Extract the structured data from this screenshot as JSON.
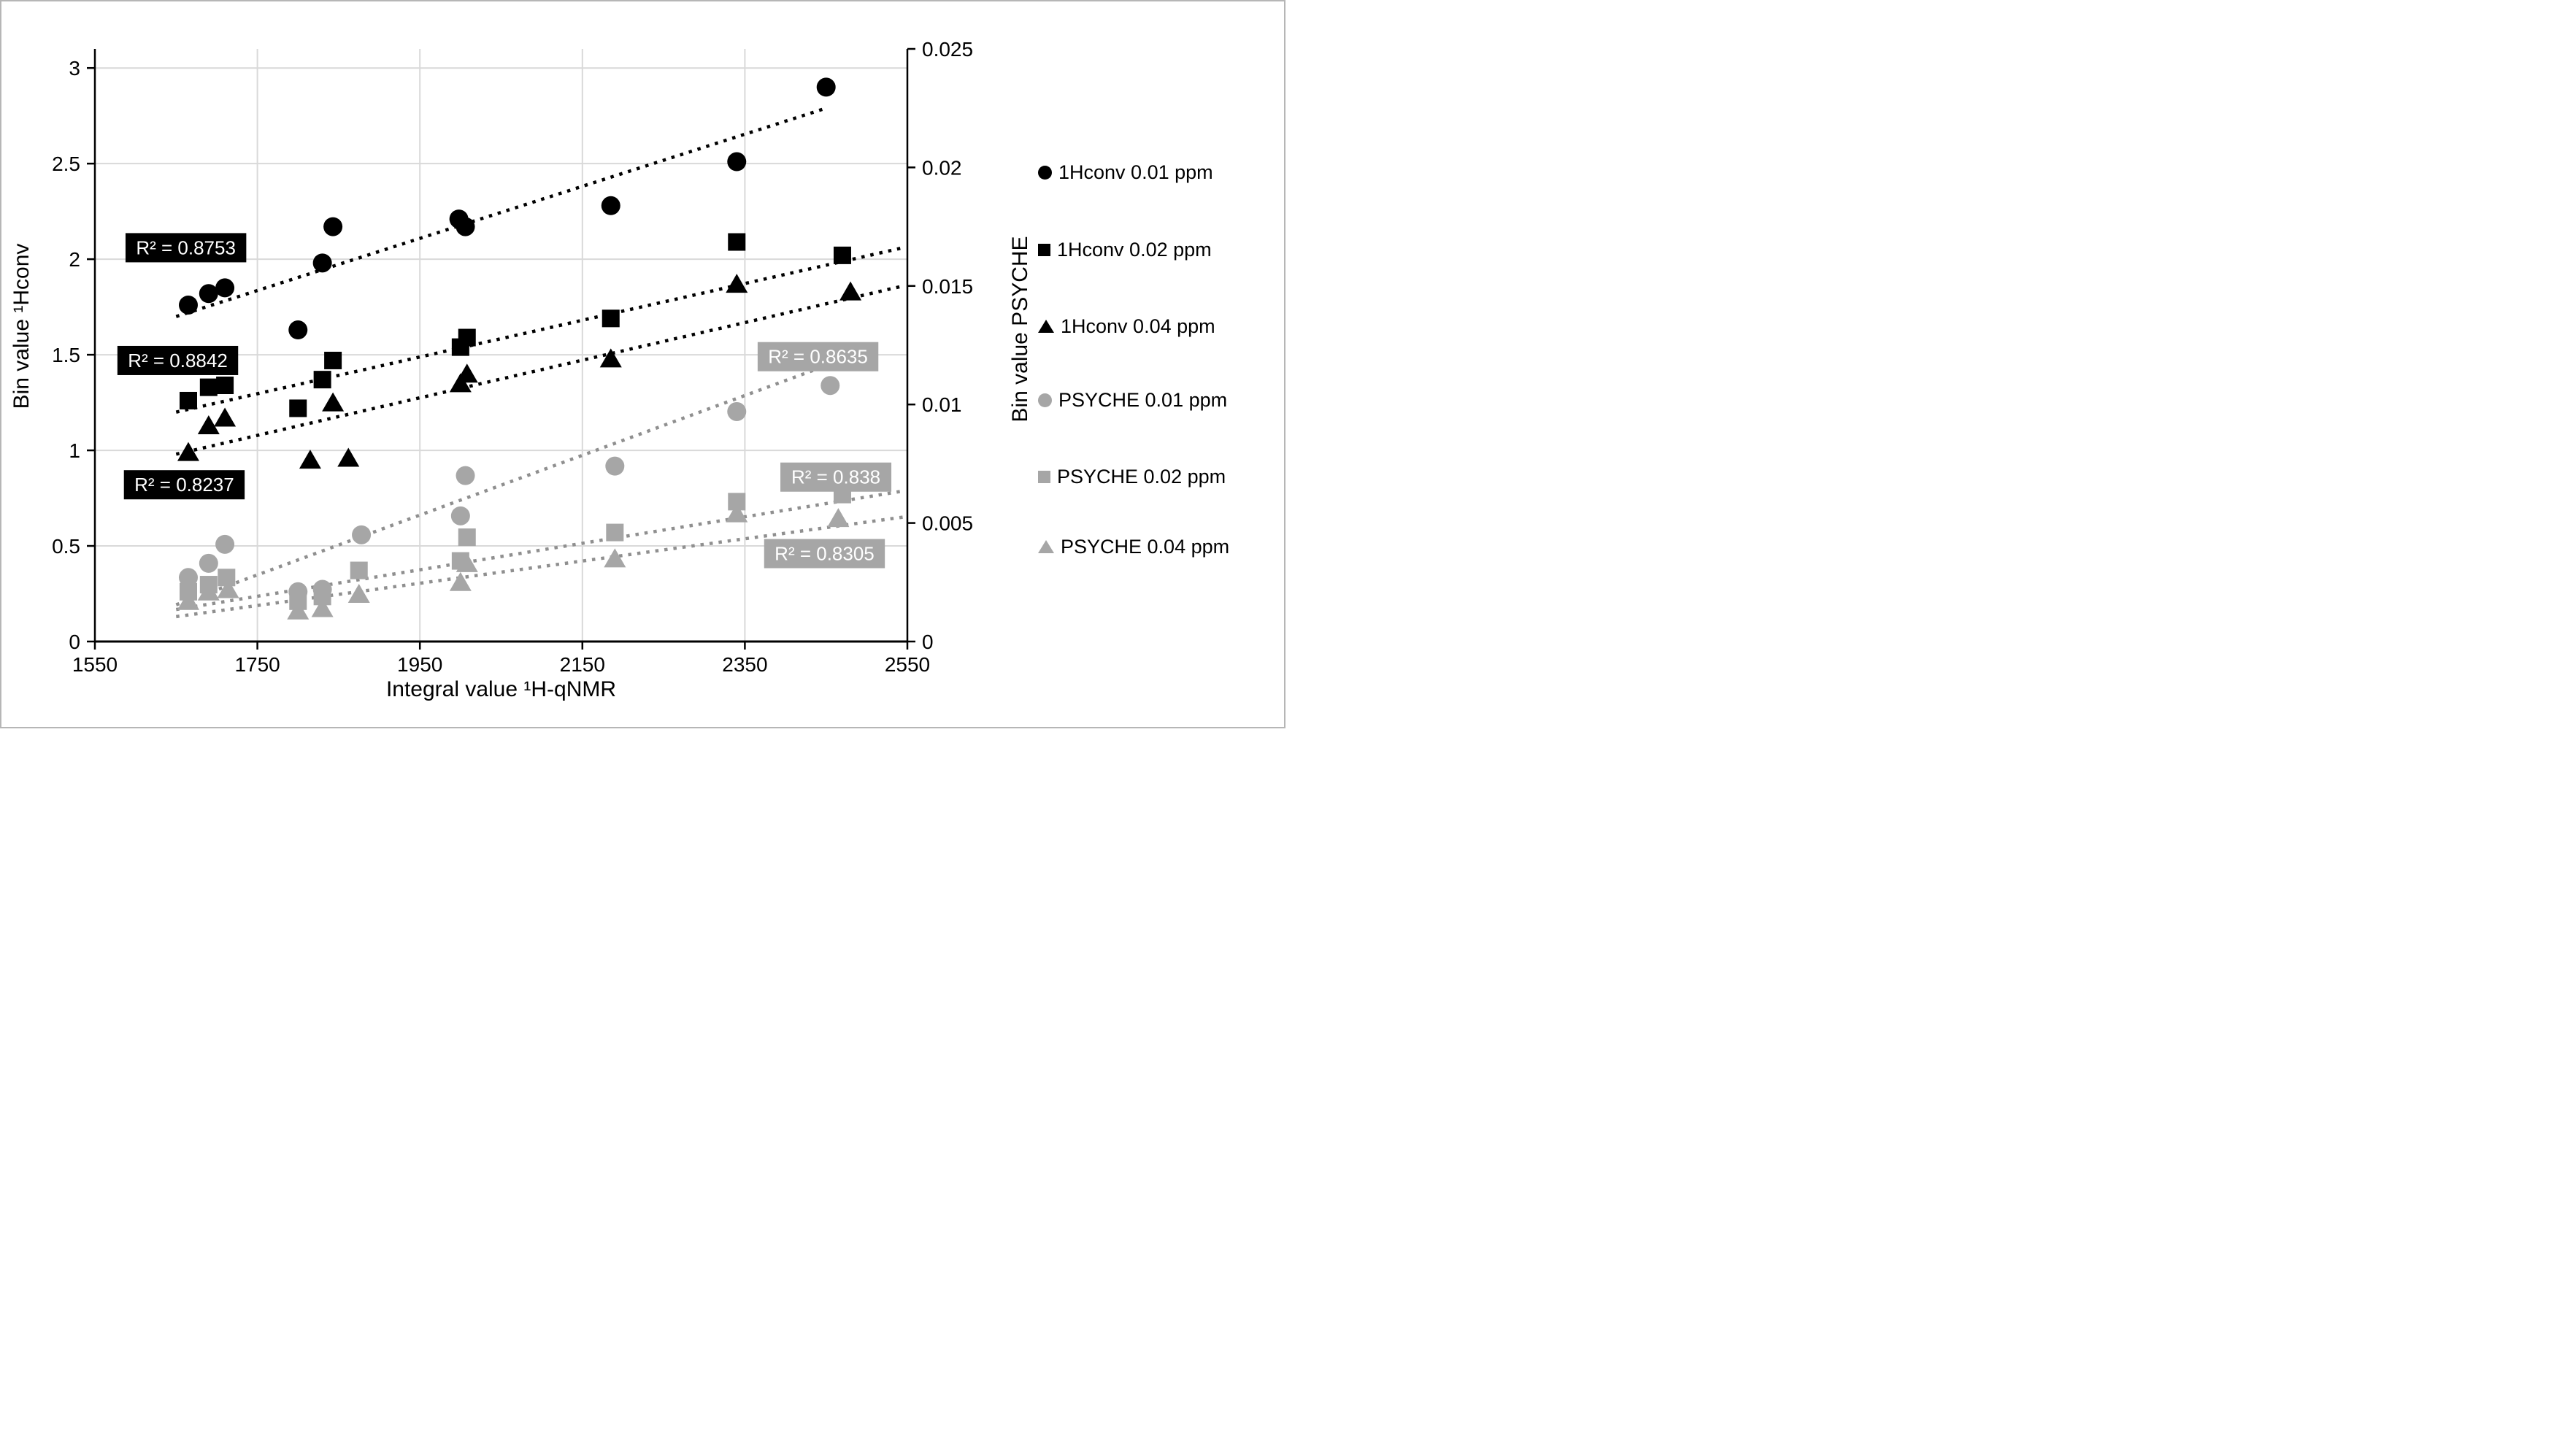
{
  "colors": {
    "black_series": "#000000",
    "gray_series": "#a6a6a6",
    "gray_trend": "#8f8f8f",
    "gridline": "#d9d9d9",
    "axis": "#000000",
    "r2_black_bg": "#000000",
    "r2_gray_bg": "#a6a6a6",
    "r2_text": "#ffffff",
    "frame_border": "#b6b6b6",
    "background": "#ffffff"
  },
  "titles": {
    "x_axis": "Integral value ¹H-qNMR",
    "y_axis_left": "Bin value ¹Hconv",
    "y_axis_right": "Bin value PSYCHE"
  },
  "legend": {
    "items": [
      {
        "label": "1Hconv 0.01 ppm",
        "marker": "circle",
        "color": "#000000"
      },
      {
        "label": "1Hconv 0.02 ppm",
        "marker": "square",
        "color": "#000000"
      },
      {
        "label": "1Hconv 0.04 ppm",
        "marker": "triangle",
        "color": "#000000"
      },
      {
        "label": "PSYCHE 0.01 ppm",
        "marker": "circle",
        "color": "#a6a6a6"
      },
      {
        "label": "PSYCHE 0.02 ppm",
        "marker": "square",
        "color": "#a6a6a6"
      },
      {
        "label": "PSYCHE 0.04 ppm",
        "marker": "triangle",
        "color": "#a6a6a6"
      }
    ]
  },
  "chart_data": {
    "type": "scatter",
    "title": "",
    "xlabel": "Integral value ¹H-qNMR",
    "ylabel_left": "Bin value ¹Hconv",
    "ylabel_right": "Bin value PSYCHE",
    "grid": true,
    "legend_position": "right",
    "x_axis": {
      "min": 1550,
      "max": 2550,
      "tick_labels": [
        "1550",
        "1750",
        "1950",
        "2150",
        "2350",
        "2550"
      ],
      "tick_values": [
        1550,
        1750,
        1950,
        2150,
        2350,
        2550
      ]
    },
    "y_axis_left": {
      "min": 0,
      "max": 3.1,
      "tick_labels": [
        "0",
        "0.5",
        "1",
        "1.5",
        "2",
        "2.5",
        "3"
      ],
      "tick_values": [
        0,
        0.5,
        1,
        1.5,
        2,
        2.5,
        3
      ]
    },
    "y_axis_right": {
      "min": 0,
      "max": 0.025,
      "tick_labels": [
        "0",
        "0.005",
        "0.01",
        "0.015",
        "0.02",
        "0.025"
      ],
      "tick_values": [
        0,
        0.005,
        0.01,
        0.015,
        0.02,
        0.025
      ]
    },
    "series": [
      {
        "name": "1Hconv 0.01 ppm",
        "marker": "circle",
        "color": "#000000",
        "axis": "left",
        "x": [
          1665,
          1690,
          1710,
          1800,
          1830,
          1843,
          1998,
          2006,
          2185,
          2340,
          2450
        ],
        "y": [
          1.76,
          1.82,
          1.85,
          1.63,
          1.98,
          2.17,
          2.21,
          2.17,
          2.28,
          2.51,
          2.9
        ],
        "trend": {
          "x1": 1650,
          "y1": 1.7,
          "x2": 2450,
          "y2": 2.79
        },
        "r2": {
          "text": "R² = 0.8753",
          "value": 0.8753,
          "label_x": 1662,
          "label_y": 2.06,
          "style": "black"
        }
      },
      {
        "name": "1Hconv 0.02 ppm",
        "marker": "square",
        "color": "#000000",
        "axis": "left",
        "x": [
          1665,
          1690,
          1710,
          1800,
          1830,
          1843,
          2000,
          2008,
          2185,
          2340,
          2470
        ],
        "y": [
          1.26,
          1.33,
          1.34,
          1.22,
          1.37,
          1.47,
          1.54,
          1.59,
          1.69,
          2.09,
          2.02
        ],
        "trend": {
          "x1": 1650,
          "y1": 1.2,
          "x2": 2545,
          "y2": 2.06
        },
        "r2": {
          "text": "R² = 0.8842",
          "value": 0.8842,
          "label_x": 1652,
          "label_y": 1.47,
          "style": "black"
        }
      },
      {
        "name": "1Hconv 0.04 ppm",
        "marker": "triangle",
        "color": "#000000",
        "axis": "left",
        "x": [
          1665,
          1690,
          1710,
          1815,
          1843,
          1862,
          2000,
          2008,
          2185,
          2340,
          2480
        ],
        "y": [
          0.99,
          1.13,
          1.17,
          0.95,
          1.25,
          0.96,
          1.35,
          1.4,
          1.48,
          1.87,
          1.83
        ],
        "trend": {
          "x1": 1650,
          "y1": 0.98,
          "x2": 2545,
          "y2": 1.86
        },
        "r2": {
          "text": "R² = 0.8237",
          "value": 0.8237,
          "label_x": 1660,
          "label_y": 0.82,
          "style": "black"
        }
      },
      {
        "name": "PSYCHE 0.01 ppm",
        "marker": "circle",
        "color": "#a6a6a6",
        "axis": "right",
        "x": [
          1665,
          1690,
          1710,
          1800,
          1830,
          1878,
          2000,
          2006,
          2190,
          2340,
          2455
        ],
        "y": [
          0.0027,
          0.0033,
          0.0041,
          0.0021,
          0.0022,
          0.0045,
          0.0053,
          0.007,
          0.0074,
          0.0097,
          0.0108
        ],
        "trend": {
          "x1": 1650,
          "y1": 0.00155,
          "x2": 2435,
          "y2": 0.01145
        },
        "r2": {
          "text": "R² = 0.8635",
          "value": 0.8635,
          "label_x": 2440,
          "label_y": 1.49,
          "style": "gray"
        }
      },
      {
        "name": "PSYCHE 0.02 ppm",
        "marker": "square",
        "color": "#a6a6a6",
        "axis": "right",
        "x": [
          1665,
          1690,
          1712,
          1800,
          1830,
          1875,
          2000,
          2008,
          2190,
          2340,
          2470
        ],
        "y": [
          0.0021,
          0.0024,
          0.0027,
          0.0017,
          0.0019,
          0.003,
          0.0034,
          0.0044,
          0.0046,
          0.0059,
          0.0062
        ],
        "trend": {
          "x1": 1650,
          "y1": 0.00135,
          "x2": 2545,
          "y2": 0.00635
        },
        "r2": {
          "text": "R² = 0.838",
          "value": 0.838,
          "label_x": 2462,
          "label_y": 0.86,
          "style": "gray"
        }
      },
      {
        "name": "PSYCHE 0.04 ppm",
        "marker": "triangle",
        "color": "#a6a6a6",
        "axis": "right",
        "x": [
          1665,
          1690,
          1714,
          1800,
          1830,
          1875,
          2000,
          2008,
          2190,
          2340,
          2465
        ],
        "y": [
          0.0017,
          0.0021,
          0.0022,
          0.0013,
          0.0014,
          0.002,
          0.0025,
          0.0033,
          0.0035,
          0.0054,
          0.0052
        ],
        "trend": {
          "x1": 1650,
          "y1": 0.00105,
          "x2": 2545,
          "y2": 0.00525
        },
        "r2": {
          "text": "R² = 0.8305",
          "value": 0.8305,
          "label_x": 2448,
          "label_y": 0.46,
          "style": "gray"
        }
      }
    ]
  }
}
